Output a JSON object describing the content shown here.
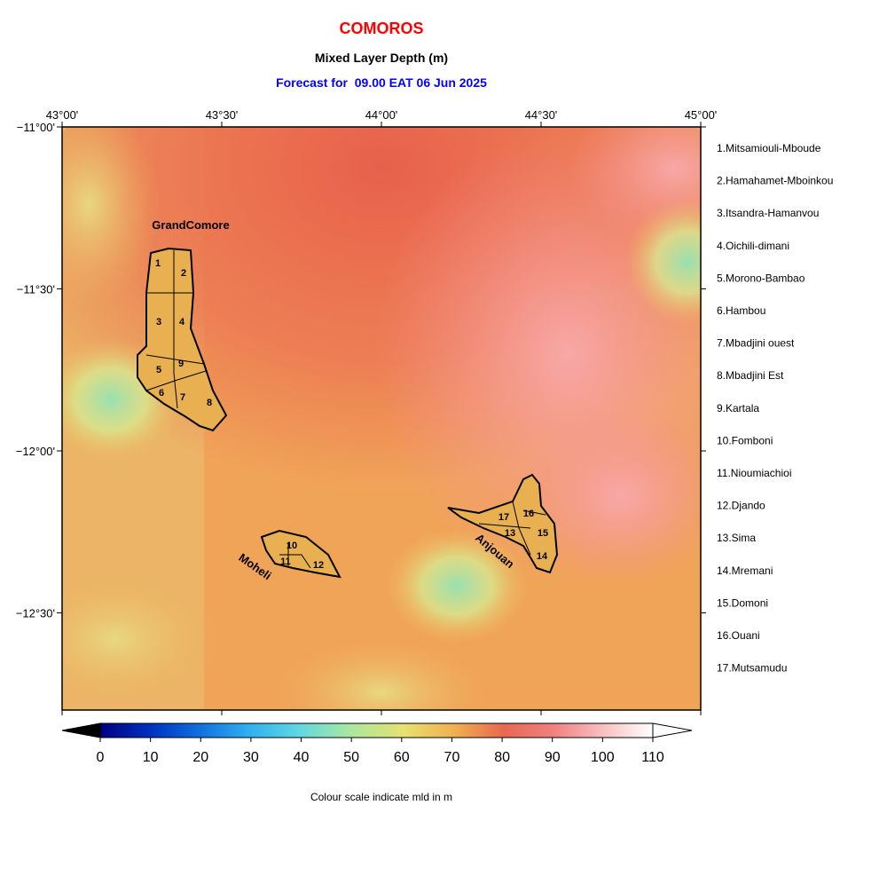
{
  "title": "COMOROS",
  "subtitle": "Mixed Layer Depth (m)",
  "forecast": "Forecast for  09.00 EAT 06 Jun 2025",
  "map": {
    "lon_range": [
      43,
      45
    ],
    "lat_range": [
      -11,
      -12.8
    ],
    "lon_ticks": [
      {
        "value": 43,
        "label": "43°00'"
      },
      {
        "value": 43.5,
        "label": "43°30'"
      },
      {
        "value": 44,
        "label": "44°00'"
      },
      {
        "value": 44.5,
        "label": "44°30'"
      },
      {
        "value": 45,
        "label": "45°00'"
      }
    ],
    "lat_ticks": [
      {
        "value": -11,
        "label": "−11°00'"
      },
      {
        "value": -11.5,
        "label": "−11°30'"
      },
      {
        "value": -12,
        "label": "−12°00'"
      },
      {
        "value": -12.5,
        "label": "−12°30'"
      }
    ],
    "islands": [
      "GrandComore",
      "Moheli",
      "Anjouan"
    ],
    "regions": [
      {
        "map_label": "1",
        "legend": "1.Mitsamiouli-Mboude"
      },
      {
        "map_label": "2",
        "legend": "2.Hamahamet-Mboinkou"
      },
      {
        "map_label": "3",
        "legend": "3.Itsandra-Hamanvou"
      },
      {
        "map_label": "4",
        "legend": "4.Oichili-dimani"
      },
      {
        "map_label": "5",
        "legend": "5.Morono-Bambao"
      },
      {
        "map_label": "6",
        "legend": "6.Hambou"
      },
      {
        "map_label": "7",
        "legend": "7.Mbadjini ouest"
      },
      {
        "map_label": "8",
        "legend": "8.Mbadjini Est"
      },
      {
        "map_label": "9",
        "legend": "9.Kartala"
      },
      {
        "map_label": "10",
        "legend": "10.Fomboni"
      },
      {
        "map_label": "11",
        "legend": "11.Nioumiachioi"
      },
      {
        "map_label": "12",
        "legend": "12.Djando"
      },
      {
        "map_label": "13",
        "legend": "13.Sima"
      },
      {
        "map_label": "14",
        "legend": "14.Mremani"
      },
      {
        "map_label": "15",
        "legend": "15.Domoni"
      },
      {
        "map_label": "16",
        "legend": "16.Ouani"
      },
      {
        "map_label": "17",
        "legend": "17.Mutsamudu"
      }
    ]
  },
  "colorbar": {
    "range": [
      0,
      110
    ],
    "ticks": [
      0,
      10,
      20,
      30,
      40,
      50,
      60,
      70,
      80,
      90,
      100,
      110
    ],
    "caption": "Colour scale indicate mld in m"
  }
}
